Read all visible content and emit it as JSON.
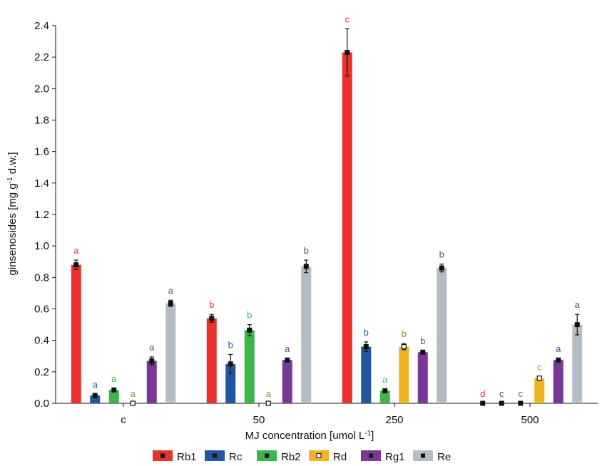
{
  "chart_data": {
    "type": "bar",
    "title": "",
    "xlabel": "MJ concentration [umol L",
    "xlabel_sup": "-1",
    "xlabel_end": "]",
    "ylabel": "ginsenosides [mg g",
    "ylabel_sup": "-1",
    "ylabel_end": " d.w.]",
    "ylim": [
      0,
      2.4
    ],
    "yticks": [
      "0.0",
      "0.2",
      "0.4",
      "0.6",
      "0.8",
      "1.0",
      "1.2",
      "1.4",
      "1.6",
      "1.8",
      "2.0",
      "2.2",
      "2.4"
    ],
    "categories": [
      "c",
      "50",
      "250",
      "500"
    ],
    "grid": false,
    "legend_position": "bottom",
    "series": [
      {
        "name": "Rb1",
        "color": "#e8322b",
        "sig_color": "#e8322b",
        "marker": "filled",
        "values": [
          0.88,
          0.54,
          2.23,
          0.0
        ],
        "errors": [
          0.03,
          0.025,
          0.15,
          0.0
        ],
        "letters": [
          "a",
          "b",
          "c",
          "d"
        ]
      },
      {
        "name": "Rc",
        "color": "#2356a0",
        "sig_color": "#2356a0",
        "marker": "filled",
        "values": [
          0.05,
          0.25,
          0.36,
          0.0
        ],
        "errors": [
          0.01,
          0.06,
          0.03,
          0.0
        ],
        "letters": [
          "a",
          "b",
          "b",
          "c"
        ]
      },
      {
        "name": "Rb2",
        "color": "#3cb54a",
        "sig_color": "#3cb54a",
        "marker": "filled",
        "values": [
          0.085,
          0.465,
          0.08,
          0.0
        ],
        "errors": [
          0.01,
          0.035,
          0.01,
          0.0
        ],
        "letters": [
          "a",
          "b",
          "a",
          ""
        ]
      },
      {
        "name": "Rd",
        "color": "#f0b323",
        "sig_color": "#a08a3c",
        "marker": "open",
        "values": [
          0.0,
          0.0,
          0.36,
          0.16
        ],
        "errors": [
          0.0,
          0.0,
          0.02,
          0.01
        ],
        "letters": [
          "a",
          "a",
          "b",
          "c"
        ]
      },
      {
        "name": "Rg1",
        "color": "#7a3896",
        "sig_color": "#7a3896",
        "marker": "filled",
        "values": [
          0.27,
          0.275,
          0.325,
          0.275
        ],
        "errors": [
          0.025,
          0.01,
          0.01,
          0.01
        ],
        "letters": [
          "a",
          "a",
          "b",
          "a"
        ]
      },
      {
        "name": "Re",
        "color": "#b5bcc4",
        "sig_color": "#555555",
        "marker": "filled",
        "values": [
          0.635,
          0.87,
          0.86,
          0.5
        ],
        "errors": [
          0.02,
          0.04,
          0.025,
          0.065
        ],
        "letters": [
          "a",
          "b",
          "b",
          "a"
        ]
      }
    ],
    "extra_letters": [
      {
        "series": 2,
        "category": 3,
        "letter": "c",
        "color": "#7a6a3c"
      }
    ]
  }
}
